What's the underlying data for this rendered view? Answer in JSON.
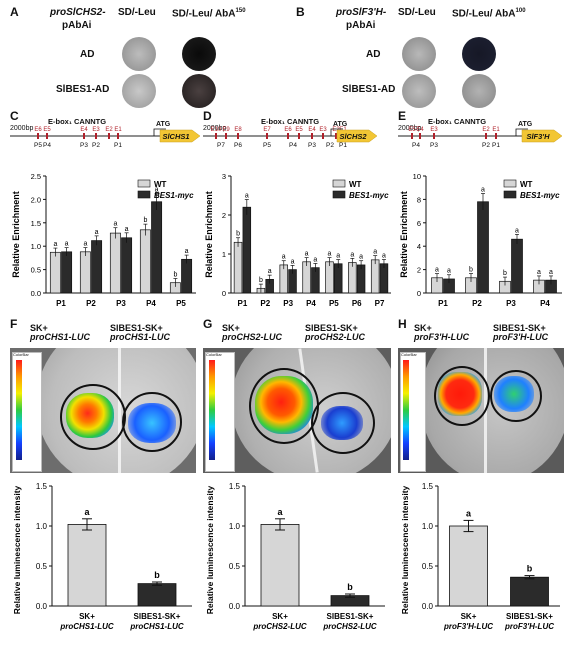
{
  "panel_labels": {
    "A": "A",
    "B": "B",
    "C": "C",
    "D": "D",
    "E": "E",
    "F": "F",
    "G": "G",
    "H": "H"
  },
  "yeast": {
    "A": {
      "construct": "proSlCHS2-",
      "construct2": "pAbAi",
      "col1": "SD/-Leu",
      "col2": "SD/-Leu/ AbA",
      "aba": "150",
      "row1": "AD",
      "row2": "SlBES1-AD"
    },
    "B": {
      "construct": "proSlF3'H-",
      "construct2": "pAbAi",
      "col1": "SD/-Leu",
      "col2": "SD/-Leu/ AbA",
      "aba": "100",
      "row1": "AD",
      "row2": "SlBES1-AD"
    }
  },
  "promoters": {
    "C": {
      "length": "2000bp",
      "ebox": "E-box₁ CANNTG",
      "atg": "ATG",
      "gene": "SlCHS1",
      "boxes": [
        "E6",
        "E5",
        "E4",
        "E3",
        "E2",
        "E1"
      ],
      "primers": [
        "P5",
        "P4",
        "P3",
        "P2",
        "P1"
      ]
    },
    "D": {
      "length": "2000bp",
      "ebox": "E-box₁ CANNTG",
      "atg": "ATG",
      "gene": "SlCHS2",
      "boxes": [
        "E10",
        "E9",
        "E8",
        "E7",
        "E6",
        "E5",
        "E4",
        "E3",
        "E2",
        "E1"
      ],
      "primers": [
        "P7",
        "P6",
        "P5",
        "P4",
        "P3",
        "P2",
        "P1"
      ]
    },
    "E": {
      "length": "2000bp",
      "ebox": "E-box₁ CANNTG",
      "atg": "ATG",
      "gene": "SlF3'H",
      "boxes": [
        "E5",
        "E4",
        "E3",
        "E2",
        "E1"
      ],
      "primers": [
        "P4",
        "P3",
        "P2",
        "P1"
      ]
    }
  },
  "chart_data": [
    {
      "panel": "C",
      "type": "bar",
      "ylabel": "Relative Enrichment",
      "ylim": [
        0,
        2.5
      ],
      "yticks": [
        "0.0",
        "0.5",
        "1.0",
        "1.5",
        "2.0",
        "2.5"
      ],
      "categories": [
        "P1",
        "P2",
        "P3",
        "P4",
        "P5"
      ],
      "series": [
        {
          "name": "WT",
          "values": [
            0.87,
            0.88,
            1.28,
            1.35,
            0.22
          ]
        },
        {
          "name": "BES1-myc",
          "values": [
            0.88,
            1.12,
            1.18,
            1.95,
            0.72
          ]
        }
      ],
      "labels": [
        [
          "a",
          "a"
        ],
        [
          "a",
          "a"
        ],
        [
          "a",
          "a"
        ],
        [
          "b",
          "a"
        ],
        [
          "b",
          "a"
        ]
      ],
      "legend": [
        "WT",
        "BES1-myc"
      ]
    },
    {
      "panel": "D",
      "type": "bar",
      "ylabel": "Relative Enrichment",
      "ylim": [
        0,
        3
      ],
      "yticks": [
        "0",
        "1",
        "2",
        "3"
      ],
      "categories": [
        "P1",
        "P2",
        "P3",
        "P4",
        "P5",
        "P6",
        "P7"
      ],
      "series": [
        {
          "name": "WT",
          "values": [
            1.3,
            0.12,
            0.72,
            0.8,
            0.8,
            0.78,
            0.85
          ]
        },
        {
          "name": "BES1-myc",
          "values": [
            2.2,
            0.35,
            0.6,
            0.65,
            0.75,
            0.72,
            0.75
          ]
        }
      ],
      "labels": [
        [
          "b",
          "a"
        ],
        [
          "b",
          "a"
        ],
        [
          "a",
          "a"
        ],
        [
          "a",
          "a"
        ],
        [
          "a",
          "a"
        ],
        [
          "a",
          "a"
        ],
        [
          "a",
          "a"
        ]
      ],
      "legend": [
        "WT",
        "BES1-myc"
      ]
    },
    {
      "panel": "E",
      "type": "bar",
      "ylabel": "Relative Enrichment",
      "ylim": [
        0,
        10
      ],
      "yticks": [
        "0",
        "2",
        "4",
        "6",
        "8",
        "10"
      ],
      "categories": [
        "P1",
        "P2",
        "P3",
        "P4"
      ],
      "series": [
        {
          "name": "WT",
          "values": [
            1.3,
            1.3,
            1.0,
            1.1
          ]
        },
        {
          "name": "BES1-myc",
          "values": [
            1.2,
            7.8,
            4.6,
            1.1
          ]
        }
      ],
      "labels": [
        [
          "a",
          "a"
        ],
        [
          "b",
          "a"
        ],
        [
          "b",
          "a"
        ],
        [
          "a",
          "a"
        ]
      ],
      "legend": [
        "WT",
        "BES1-myc"
      ]
    },
    {
      "panel": "F",
      "type": "bar",
      "ylabel": "Relative luminescence intensity",
      "ylim": [
        0,
        1.5
      ],
      "yticks": [
        "0.0",
        "0.5",
        "1.0",
        "1.5"
      ],
      "categories": [
        "SK+ proCHS1-LUC",
        "SlBES1-SK+ proCHS1-LUC"
      ],
      "values": [
        1.02,
        0.28
      ],
      "letters": [
        "a",
        "b"
      ]
    },
    {
      "panel": "G",
      "type": "bar",
      "ylabel": "Relative luminescence intensity",
      "ylim": [
        0,
        1.5
      ],
      "yticks": [
        "0.0",
        "0.5",
        "1.0",
        "1.5"
      ],
      "categories": [
        "SK+ proCHS2-LUC",
        "SlBES1-SK+ proCHS2-LUC"
      ],
      "values": [
        1.02,
        0.13
      ],
      "letters": [
        "a",
        "b"
      ]
    },
    {
      "panel": "H",
      "type": "bar",
      "ylabel": "Relative luminescence intensity",
      "ylim": [
        0,
        1.5
      ],
      "yticks": [
        "0.0",
        "0.5",
        "1.0",
        "1.5"
      ],
      "categories": [
        "SK+ proF3'H-LUC",
        "SlBES1-SK+ proF3'H-LUC"
      ],
      "values": [
        1.0,
        0.36
      ],
      "letters": [
        "a",
        "b"
      ]
    }
  ],
  "leaves": {
    "F": {
      "left_top": "SK+",
      "left_bottom": "proCHS1-LUC",
      "right_top": "SlBES1-SK+",
      "right_bottom": "proCHS1-LUC",
      "colorbar": "ColorBar"
    },
    "G": {
      "left_top": "SK+",
      "left_bottom": "proCHS2-LUC",
      "right_top": "SlBES1-SK+",
      "right_bottom": "proCHS2-LUC",
      "colorbar": "ColorBar"
    },
    "H": {
      "left_top": "SK+",
      "left_bottom": "proF3'H-LUC",
      "right_top": "SlBES1-SK+",
      "right_bottom": "proF3'H-LUC",
      "colorbar": "ColorBar"
    }
  },
  "colors": {
    "wt": "#d6d6d6",
    "bes1": "#2b2b2b",
    "promoter_line": "#6a6a6a",
    "box": "#b0202a",
    "arrow": "#f2c634"
  }
}
